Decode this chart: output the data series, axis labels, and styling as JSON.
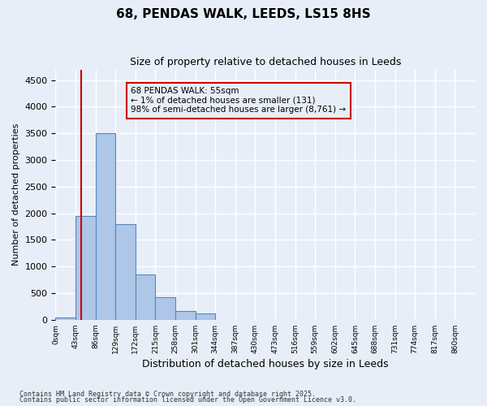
{
  "title1": "68, PENDAS WALK, LEEDS, LS15 8HS",
  "title2": "Size of property relative to detached houses in Leeds",
  "xlabel": "Distribution of detached houses by size in Leeds",
  "ylabel": "Number of detached properties",
  "annotation_title": "68 PENDAS WALK: 55sqm",
  "annotation_line1": "← 1% of detached houses are smaller (131)",
  "annotation_line2": "98% of semi-detached houses are larger (8,761) →",
  "bar_labels": [
    "0sqm",
    "43sqm",
    "86sqm",
    "129sqm",
    "172sqm",
    "215sqm",
    "258sqm",
    "301sqm",
    "344sqm",
    "387sqm",
    "430sqm",
    "473sqm",
    "516sqm",
    "559sqm",
    "602sqm",
    "645sqm",
    "688sqm",
    "731sqm",
    "774sqm",
    "817sqm",
    "860sqm"
  ],
  "bar_values": [
    50,
    1950,
    3500,
    1800,
    850,
    430,
    160,
    120,
    0,
    0,
    0,
    0,
    0,
    0,
    0,
    0,
    0,
    0,
    0,
    0,
    0
  ],
  "bar_color": "#aec6e8",
  "bar_edge_color": "#5588bb",
  "vline_x": 1.28,
  "vline_color": "#cc0000",
  "annotation_box_color": "#cc0000",
  "background_color": "#e8eef8",
  "grid_color": "#ffffff",
  "footer1": "Contains HM Land Registry data © Crown copyright and database right 2025.",
  "footer2": "Contains public sector information licensed under the Open Government Licence v3.0.",
  "ylim": [
    0,
    4700
  ],
  "yticks": [
    0,
    500,
    1000,
    1500,
    2000,
    2500,
    3000,
    3500,
    4000,
    4500
  ]
}
